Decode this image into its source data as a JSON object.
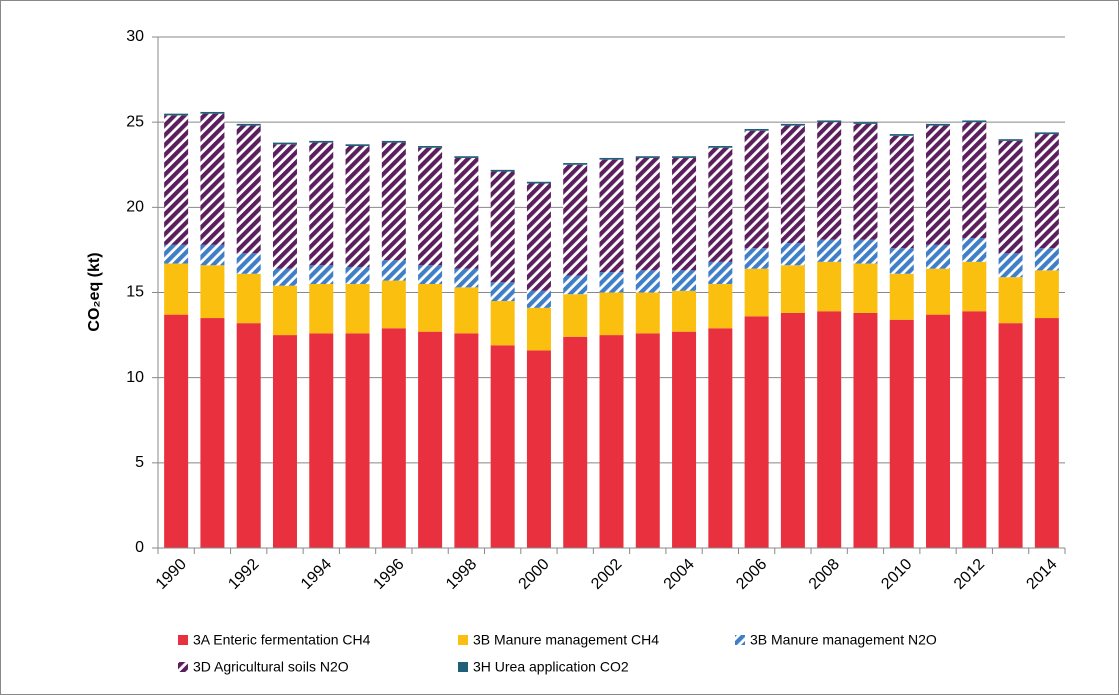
{
  "chart_data": {
    "type": "stacked_bar",
    "ylabel": "CO₂eq (kt)",
    "categories": [
      "1990",
      null,
      "1992",
      null,
      "1994",
      null,
      "1996",
      null,
      "1998",
      null,
      "2000",
      null,
      "2002",
      null,
      "2004",
      null,
      "2006",
      null,
      "2008",
      null,
      "2010",
      null,
      "2012",
      null,
      "2014"
    ],
    "series": [
      {
        "name": "3A Enteric fermentation CH4",
        "color": "#e8303e",
        "hatch": false,
        "values": [
          13.7,
          13.5,
          13.2,
          12.5,
          12.6,
          12.6,
          12.9,
          12.7,
          12.6,
          11.9,
          11.6,
          12.4,
          12.5,
          12.6,
          12.7,
          12.9,
          13.6,
          13.8,
          13.9,
          13.8,
          13.4,
          13.7,
          13.9,
          13.2,
          13.5
        ]
      },
      {
        "name": "3B Manure management CH4",
        "color": "#fbbf10",
        "hatch": false,
        "values": [
          3.0,
          3.1,
          2.9,
          2.9,
          2.9,
          2.9,
          2.8,
          2.8,
          2.7,
          2.6,
          2.5,
          2.5,
          2.5,
          2.4,
          2.4,
          2.6,
          2.8,
          2.8,
          2.9,
          2.9,
          2.7,
          2.7,
          2.9,
          2.7,
          2.8
        ]
      },
      {
        "name": "3B Manure management N2O",
        "color": "#3f7fc8",
        "hatch": true,
        "values": [
          1.1,
          1.2,
          1.2,
          1.0,
          1.1,
          1.0,
          1.2,
          1.1,
          1.1,
          1.1,
          1.0,
          1.1,
          1.2,
          1.3,
          1.2,
          1.3,
          1.2,
          1.3,
          1.3,
          1.4,
          1.5,
          1.4,
          1.4,
          1.4,
          1.3
        ]
      },
      {
        "name": "3D Agricultural soils N2O",
        "color": "#5b1f5e",
        "hatch": true,
        "values": [
          7.6,
          7.7,
          7.5,
          7.3,
          7.2,
          7.1,
          6.9,
          6.9,
          6.5,
          6.5,
          6.3,
          6.5,
          6.6,
          6.6,
          6.6,
          6.7,
          6.9,
          6.9,
          6.9,
          6.8,
          6.6,
          7.0,
          6.8,
          6.6,
          6.7
        ]
      },
      {
        "name": "3H Urea application CO2",
        "color": "#1f5f7a",
        "hatch": false,
        "values": [
          0.1,
          0.1,
          0.1,
          0.1,
          0.1,
          0.1,
          0.1,
          0.1,
          0.1,
          0.1,
          0.1,
          0.1,
          0.1,
          0.1,
          0.1,
          0.1,
          0.1,
          0.1,
          0.1,
          0.1,
          0.1,
          0.1,
          0.1,
          0.1,
          0.1
        ]
      }
    ],
    "ylim": [
      0,
      30
    ],
    "yticks": [
      0,
      5,
      10,
      15,
      20,
      25,
      30
    ],
    "grid": true
  }
}
